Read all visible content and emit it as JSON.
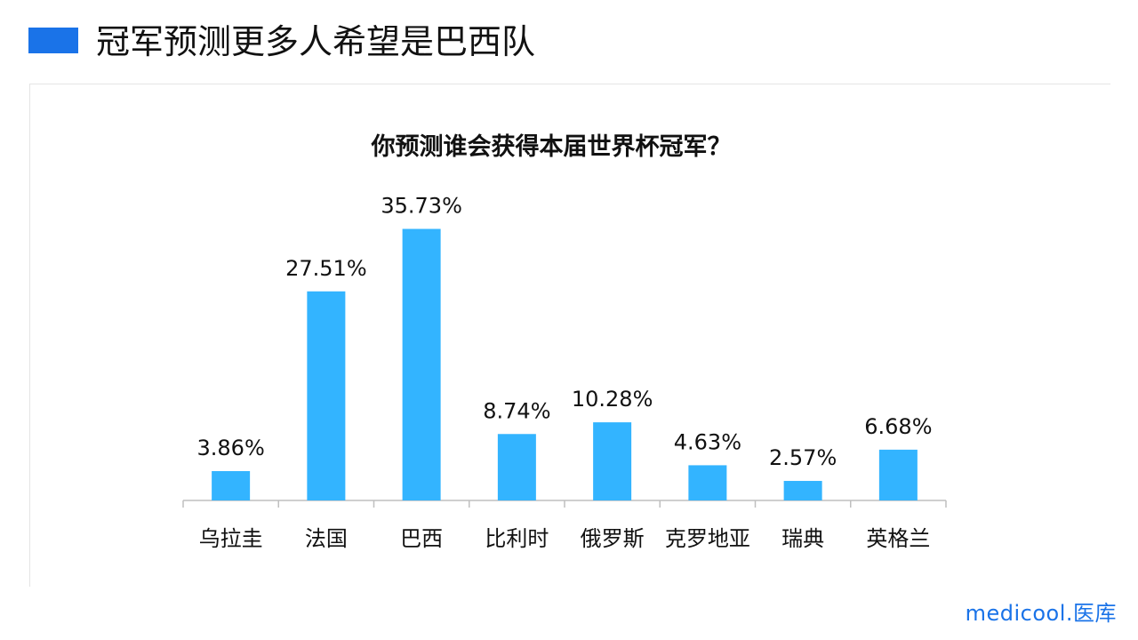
{
  "header": {
    "title": "冠军预测更多人希望是巴西队"
  },
  "chart_data": {
    "type": "bar",
    "title": "你预测谁会获得本届世界杯冠军？",
    "categories": [
      "乌拉圭",
      "法国",
      "巴西",
      "比利时",
      "俄罗斯",
      "克罗地亚",
      "瑞典",
      "英格兰"
    ],
    "values": [
      3.86,
      27.51,
      35.73,
      8.74,
      10.28,
      4.63,
      2.57,
      6.68
    ],
    "value_labels": [
      "3.86%",
      "27.51%",
      "35.73%",
      "8.74%",
      "10.28%",
      "4.63%",
      "2.57%",
      "6.68%"
    ],
    "ylim": [
      0,
      40
    ],
    "grid": false,
    "bar_color": "#33b4ff"
  },
  "logo": {
    "text": "medicool.医库"
  },
  "colors": {
    "accent": "#1a73e8",
    "bar": "#33b4ff"
  }
}
